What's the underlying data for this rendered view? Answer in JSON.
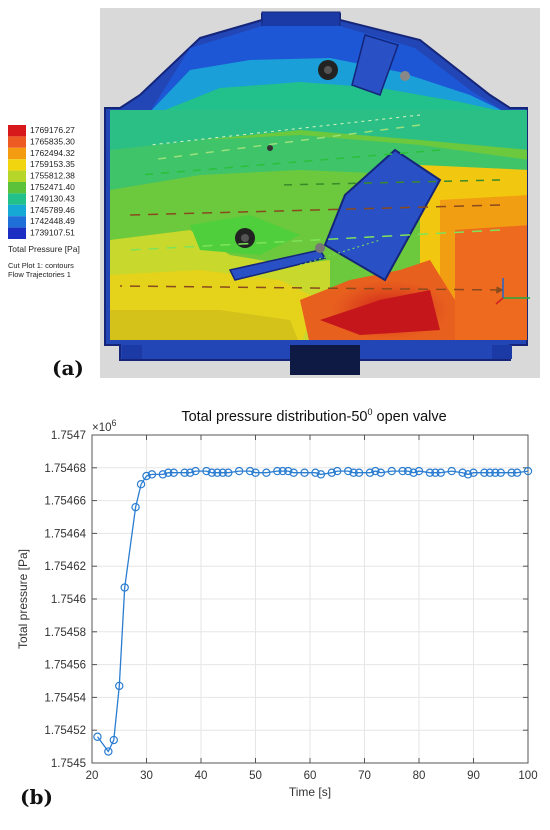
{
  "figure": {
    "panel_a_label": "(a)",
    "panel_b_label": "(b)"
  },
  "simulation": {
    "legend_values": [
      "1769176.27",
      "1765835.30",
      "1762494.32",
      "1759153.35",
      "1755812.38",
      "1752471.40",
      "1749130.43",
      "1745789.46",
      "1742448.49",
      "1739107.51"
    ],
    "legend_colors": [
      "#d7191c",
      "#ee5a24",
      "#f39c12",
      "#f1d50f",
      "#b6d62a",
      "#5cc23a",
      "#22c08a",
      "#17a9d6",
      "#1e6fd8",
      "#1c2fc2"
    ],
    "legend_title": "Total Pressure [Pa]",
    "notes": [
      "Cut Plot 1: contours",
      "Flow Trajectories 1"
    ]
  },
  "chart_data": {
    "type": "line",
    "title": "Total pressure distribution-50",
    "title_superscript": "0",
    "title_suffix": " open valve",
    "xlabel": "Time [s]",
    "ylabel": "Total pressure [Pa]",
    "y_multiplier_base": "×10",
    "y_multiplier_exp": "6",
    "xlim": [
      20,
      100
    ],
    "ylim": [
      1.7545,
      1.7547
    ],
    "x_ticks": [
      20,
      30,
      40,
      50,
      60,
      70,
      80,
      90,
      100
    ],
    "x_tick_labels": [
      "20",
      "30",
      "40",
      "50",
      "60",
      "70",
      "80",
      "90",
      "100"
    ],
    "y_ticks": [
      1.7545,
      1.75452,
      1.75454,
      1.75456,
      1.75458,
      1.7546,
      1.75462,
      1.75464,
      1.75466,
      1.75468,
      1.7547
    ],
    "y_tick_labels": [
      "1.7545",
      "1.75452",
      "1.75454",
      "1.75456",
      "1.75458",
      "1.7546",
      "1.75462",
      "1.75464",
      "1.75466",
      "1.75468",
      "1.7547"
    ],
    "grid": true,
    "marker": "circle",
    "color": "#2a7dd1",
    "series": [
      {
        "x": [
          21,
          23,
          24,
          25,
          26,
          28,
          29,
          30,
          31,
          33,
          34,
          35,
          37,
          38,
          39,
          41,
          42,
          43,
          44,
          45,
          47,
          49,
          50,
          52,
          54,
          55,
          56,
          57,
          59,
          61,
          62,
          64,
          65,
          67,
          68,
          69,
          71,
          72,
          73,
          75,
          77,
          78,
          79,
          80,
          82,
          83,
          84,
          86,
          88,
          89,
          90,
          92,
          93,
          94,
          95,
          97,
          98,
          100
        ],
        "y": [
          1.754516,
          1.754507,
          1.754514,
          1.754547,
          1.754607,
          1.754656,
          1.75467,
          1.754675,
          1.754676,
          1.754676,
          1.754677,
          1.754677,
          1.754677,
          1.754677,
          1.754678,
          1.754678,
          1.754677,
          1.754677,
          1.754677,
          1.754677,
          1.754678,
          1.754678,
          1.754677,
          1.754677,
          1.754678,
          1.754678,
          1.754678,
          1.754677,
          1.754677,
          1.754677,
          1.754676,
          1.754677,
          1.754678,
          1.754678,
          1.754677,
          1.754677,
          1.754677,
          1.754678,
          1.754677,
          1.754678,
          1.754678,
          1.754678,
          1.754677,
          1.754678,
          1.754677,
          1.754677,
          1.754677,
          1.754678,
          1.754677,
          1.754676,
          1.754677,
          1.754677,
          1.754677,
          1.754677,
          1.754677,
          1.754677,
          1.754677,
          1.754678
        ]
      }
    ]
  }
}
